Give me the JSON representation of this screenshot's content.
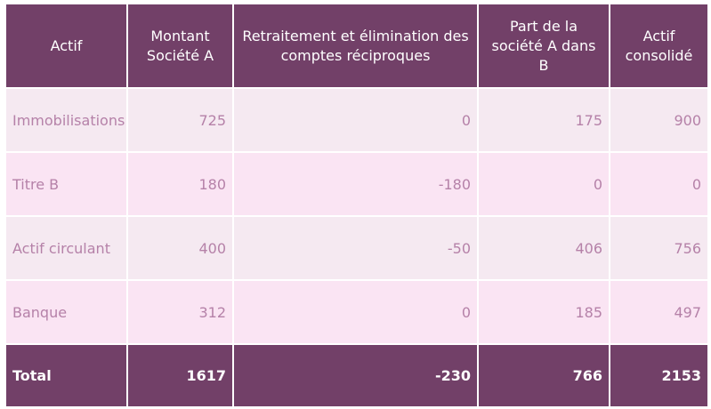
{
  "table": {
    "headers": [
      "Actif",
      "Montant Société A",
      "Retraitement et élimination des comptes réciproques",
      "Part de la société A dans B",
      "Actif consolidé"
    ],
    "rows": [
      {
        "label": "Immobilisations",
        "values": [
          "725",
          "0",
          "175",
          "900"
        ]
      },
      {
        "label": "Titre B",
        "values": [
          "180",
          "-180",
          "0",
          "0"
        ]
      },
      {
        "label": "Actif circulant",
        "values": [
          "400",
          "-50",
          "406",
          "756"
        ]
      },
      {
        "label": "Banque",
        "values": [
          "312",
          "0",
          "185",
          "497"
        ]
      }
    ],
    "total": {
      "label": "Total",
      "values": [
        "1617",
        "-230",
        "766",
        "2153"
      ]
    }
  },
  "colors": {
    "header_bg": "#724068",
    "row_odd_bg": "#f5e9f1",
    "row_even_bg": "#fae4f3",
    "body_text": "#b581a8",
    "header_text": "#ffffff"
  }
}
